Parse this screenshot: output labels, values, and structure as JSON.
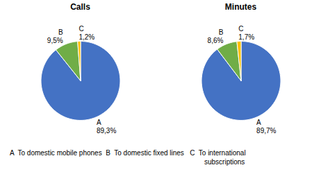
{
  "chart_data": [
    {
      "type": "pie",
      "title": "Calls",
      "categories": [
        "A",
        "B",
        "C"
      ],
      "values": [
        89.3,
        9.5,
        1.2
      ],
      "value_labels": [
        "89,3%",
        "9,5%",
        "1,2%"
      ],
      "colors": [
        "#4472c4",
        "#70ad47",
        "#ffc000"
      ],
      "data_labels": true
    },
    {
      "type": "pie",
      "title": "Minutes",
      "categories": [
        "A",
        "B",
        "C"
      ],
      "values": [
        89.7,
        8.6,
        1.7
      ],
      "value_labels": [
        "89,7%",
        "8,6%",
        "1,7%"
      ],
      "colors": [
        "#4472c4",
        "#70ad47",
        "#ffc000"
      ],
      "data_labels": true
    }
  ],
  "annotations": [
    "A  To domestic mobile phones  B  To domestic fixed lines   C  To international",
    "subscriptions"
  ]
}
